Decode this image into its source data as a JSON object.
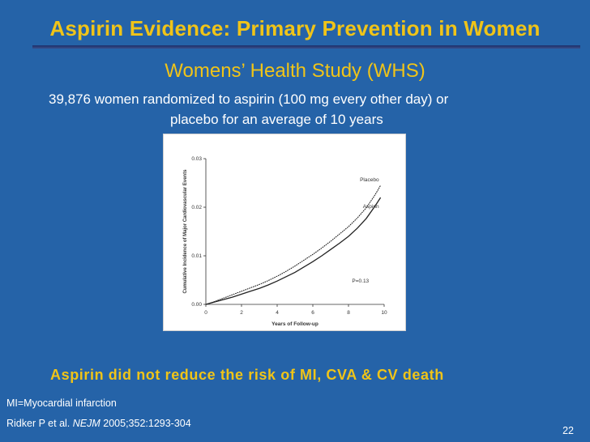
{
  "slide": {
    "title": "Aspirin Evidence: Primary Prevention in Women",
    "subtitle": "Womens’ Health Study (WHS)",
    "description_line1": "39,876 women randomized to aspirin (100 mg every other day) or",
    "description_line2": "placebo for an average of 10 years",
    "conclusion": "Aspirin did not reduce the risk of MI, CVA & CV death",
    "footnote": "MI=Myocardial infarction",
    "citation_authors": "Ridker P et al.",
    "citation_journal": "NEJM",
    "citation_rest": " 2005;352:1293-304",
    "page_number": "22"
  },
  "chart_data": {
    "type": "line",
    "xlabel": "Years of Follow-up",
    "ylabel": "Cumulative Incidence of Major Cardiovascular Events",
    "xlim": [
      0,
      10
    ],
    "ylim": [
      0,
      0.03
    ],
    "xticks": [
      "0",
      "2",
      "4",
      "6",
      "8",
      "10"
    ],
    "yticks": [
      "0.00",
      "0.01",
      "0.02",
      "0.03"
    ],
    "annotation": "P=0.13",
    "grid": false,
    "colors": {
      "axis": "#333333",
      "series": "#222222"
    },
    "series": [
      {
        "name": "Placebo",
        "style": "dotted",
        "x": [
          0,
          0.5,
          1,
          1.5,
          2,
          2.5,
          3,
          3.5,
          4,
          4.5,
          5,
          5.5,
          6,
          6.5,
          7,
          7.5,
          8,
          8.5,
          9,
          9.5,
          9.8
        ],
        "y": [
          0,
          0.0006,
          0.0013,
          0.002,
          0.0027,
          0.0034,
          0.0041,
          0.0049,
          0.0058,
          0.0068,
          0.0079,
          0.0091,
          0.0103,
          0.0116,
          0.013,
          0.0145,
          0.016,
          0.0178,
          0.0199,
          0.0226,
          0.0245
        ]
      },
      {
        "name": "Aspirin",
        "style": "solid",
        "x": [
          0,
          0.5,
          1,
          1.5,
          2,
          2.5,
          3,
          3.5,
          4,
          4.5,
          5,
          5.5,
          6,
          6.5,
          7,
          7.5,
          8,
          8.5,
          9,
          9.5,
          9.8
        ],
        "y": [
          0,
          0.0005,
          0.001,
          0.0015,
          0.0021,
          0.0027,
          0.0033,
          0.004,
          0.0048,
          0.0057,
          0.0066,
          0.0077,
          0.0088,
          0.01,
          0.0113,
          0.0126,
          0.014,
          0.0157,
          0.0177,
          0.0203,
          0.022
        ]
      }
    ]
  }
}
